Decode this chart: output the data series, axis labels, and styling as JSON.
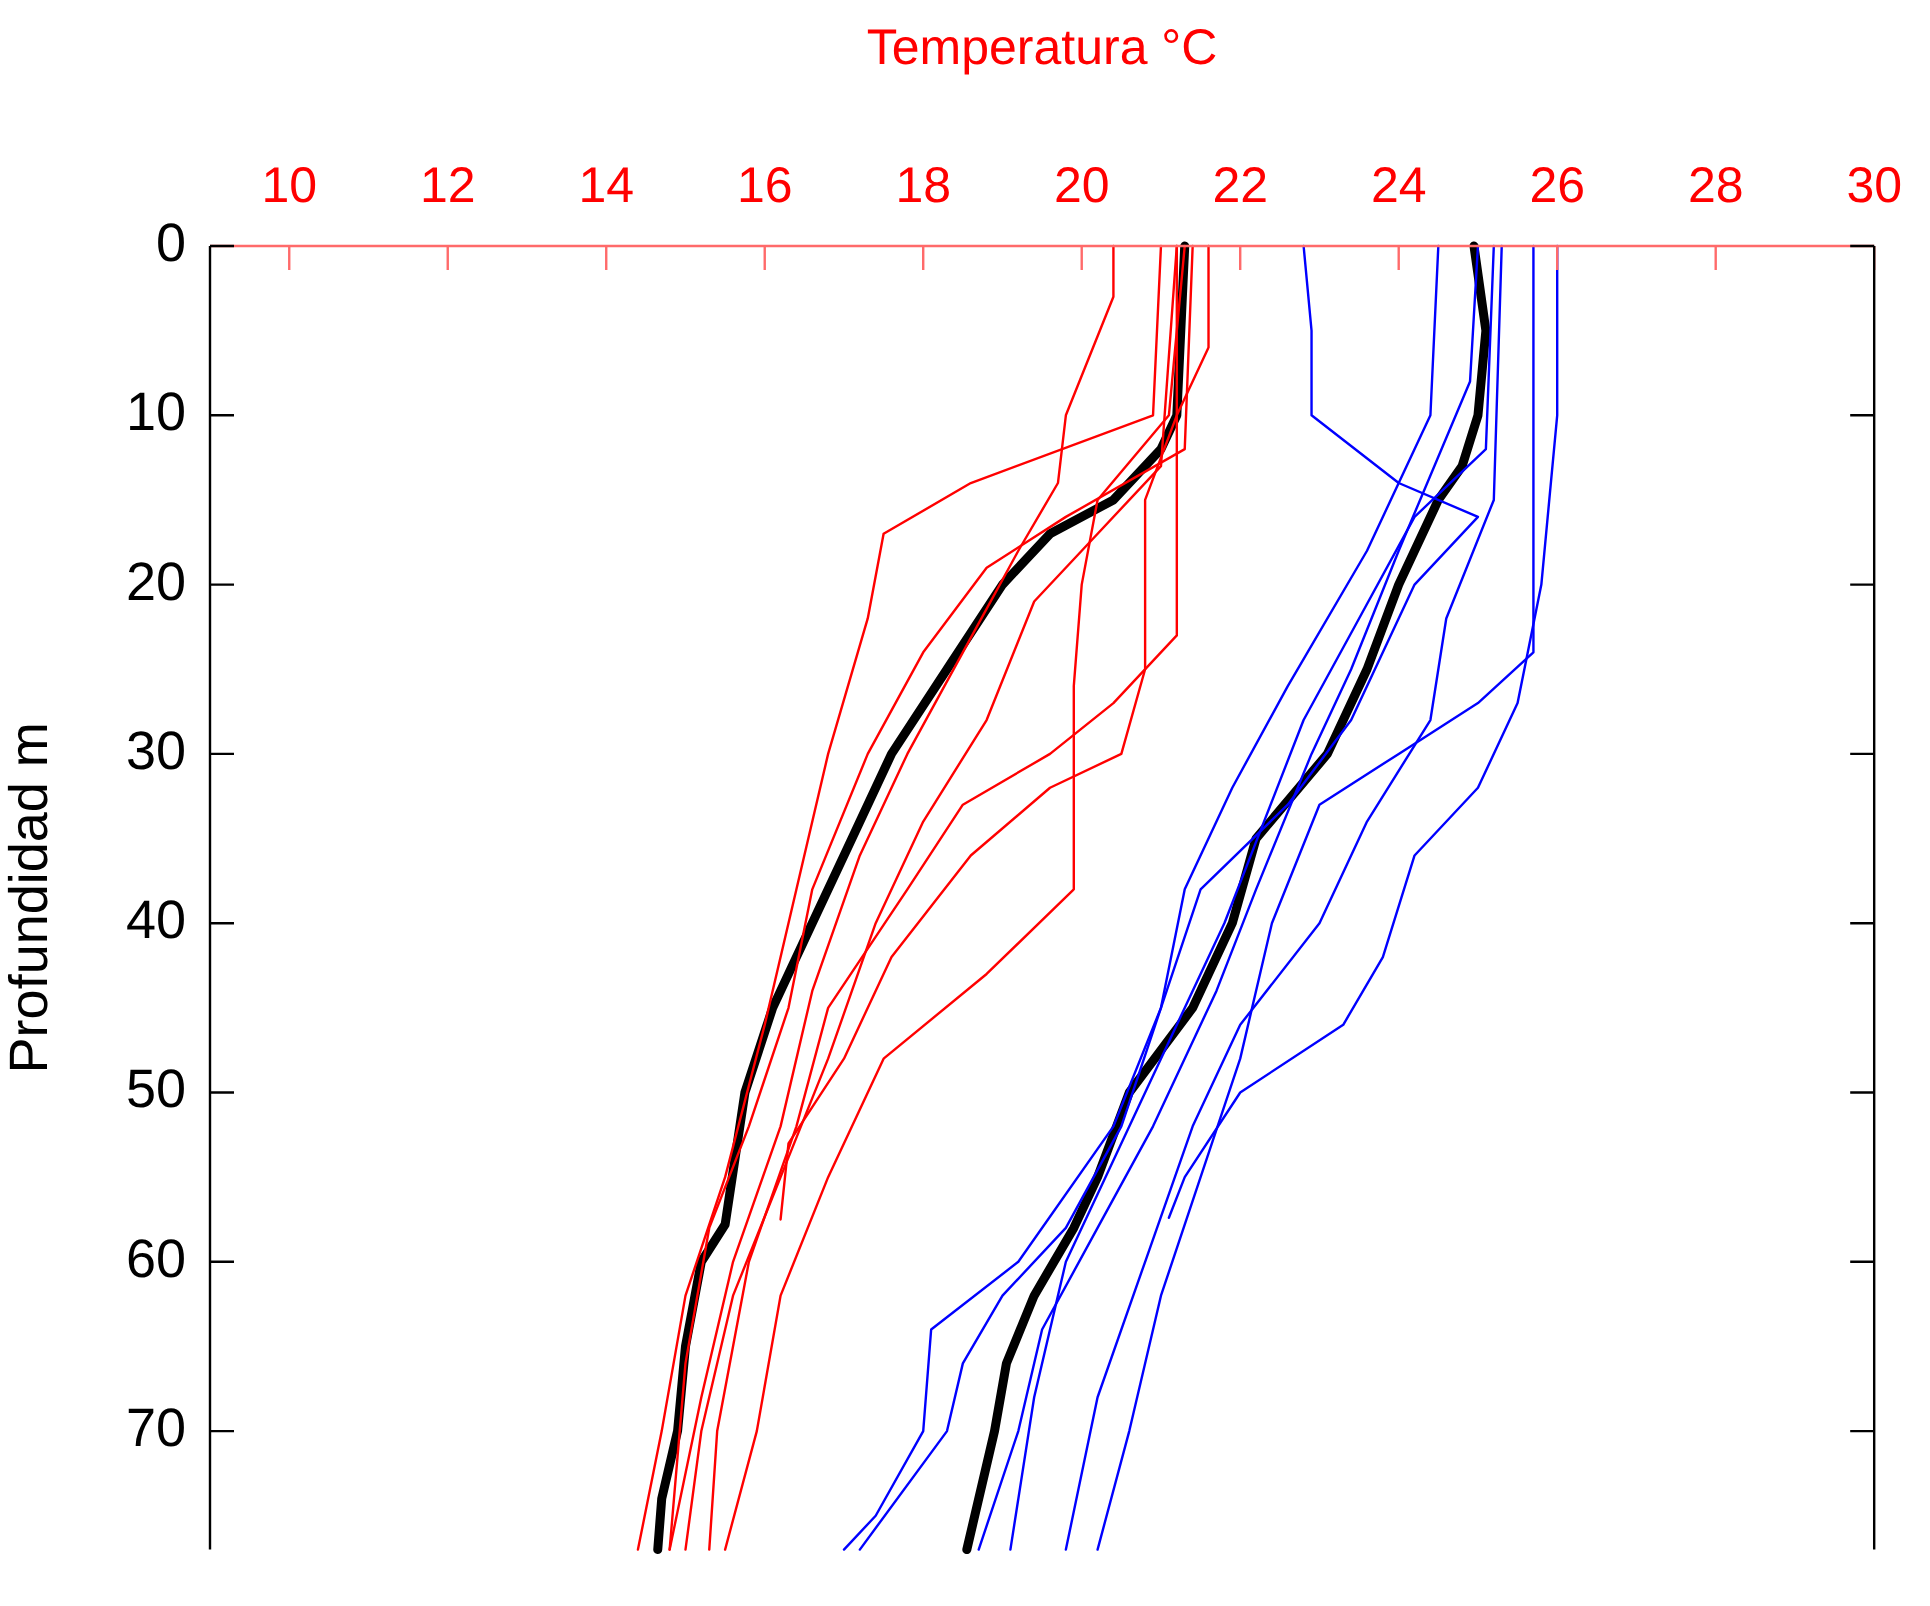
{
  "chart_data": {
    "type": "line",
    "xlabel": "Temperatura °C",
    "ylabel": "Profundidad m",
    "xlim": [
      9,
      30
    ],
    "xticks": [
      10,
      12,
      14,
      16,
      18,
      20,
      22,
      24,
      26,
      28,
      30
    ],
    "ylim": [
      77,
      0
    ],
    "yticks": [
      0,
      10,
      20,
      30,
      40,
      50,
      60,
      70
    ],
    "grid": false,
    "legend": false,
    "marker": "none",
    "line_style": "solid",
    "series": [
      {
        "color": "#ff0000",
        "x": [
          20.4,
          20.4,
          19.8,
          19.7,
          19.2,
          18.5,
          17.8,
          17.2,
          16.6,
          16.2,
          15.6,
          15.2,
          14.8
        ],
        "values": [
          0,
          3,
          10,
          14,
          18,
          24,
          30,
          36,
          44,
          52,
          60,
          68,
          77
        ]
      },
      {
        "color": "#ff0000",
        "x": [
          21.2,
          21.2,
          20.4,
          19.6,
          18.5,
          17.8,
          16.8,
          16.4,
          15.8,
          15.4,
          15.3
        ],
        "values": [
          0,
          23,
          27,
          30,
          33,
          38,
          45,
          52,
          60,
          70,
          77
        ]
      },
      {
        "color": "#ff0000",
        "x": [
          21.6,
          21.6,
          21.2,
          20.8,
          20.8,
          20.5,
          19.6,
          18.6,
          17.6,
          17.0,
          16.3,
          16.2
        ],
        "values": [
          0,
          6,
          10,
          15,
          25,
          30,
          32,
          36,
          42,
          48,
          53,
          57.5
        ]
      },
      {
        "color": "#ff0000",
        "x": [
          21.0,
          20.9,
          18.6,
          17.5,
          17.3,
          16.8,
          16.4,
          16.0,
          15.5,
          15.0,
          14.7,
          14.4
        ],
        "values": [
          0,
          10,
          14,
          17,
          22,
          30,
          38,
          46,
          55,
          62,
          70,
          77
        ]
      },
      {
        "color": "#ff0000",
        "x": [
          21.3,
          21.1,
          20.2,
          20.0,
          19.9,
          19.9,
          18.8,
          17.5,
          16.8,
          16.2,
          15.9,
          15.5
        ],
        "values": [
          0,
          10,
          15,
          20,
          26,
          38,
          43,
          48,
          55,
          62,
          70,
          77
        ]
      },
      {
        "color": "#ff0000",
        "x": [
          21.4,
          21.3,
          19.8,
          18.8,
          18.0,
          17.3,
          16.6,
          16.3,
          15.8,
          15.3,
          15.0,
          14.8
        ],
        "values": [
          0,
          12,
          16,
          19,
          24,
          30,
          38,
          45,
          52,
          58,
          66,
          77
        ]
      },
      {
        "color": "#ff0000",
        "x": [
          21.2,
          21.0,
          20.0,
          19.4,
          18.8,
          18.0,
          17.4,
          16.8,
          16.2,
          15.6,
          15.2,
          15.0
        ],
        "values": [
          0,
          13,
          18,
          21,
          28,
          34,
          40,
          48,
          55,
          62,
          70,
          77
        ]
      },
      {
        "color": "#0000ff",
        "x": [
          22.8,
          22.9,
          22.9,
          24.0,
          25.0,
          24.2,
          23.4,
          22.6,
          21.5,
          21.0,
          20.5,
          19.8,
          19.0,
          18.5,
          18.3,
          17.2
        ],
        "values": [
          0,
          5,
          10,
          14,
          16,
          20,
          28,
          33,
          38,
          45,
          52,
          58,
          62,
          66,
          70,
          77
        ]
      },
      {
        "color": "#0000ff",
        "x": [
          26.0,
          26.0,
          25.8,
          25.5,
          25.0,
          24.2,
          23.8,
          23.3,
          22.0,
          21.3,
          21.1
        ],
        "values": [
          0,
          10,
          20,
          27,
          32,
          36,
          42,
          46,
          50,
          55,
          57.4
        ]
      },
      {
        "color": "#0000ff",
        "x": [
          25.7,
          25.7,
          25.0,
          24.0,
          23.0,
          22.4,
          22.0,
          21.5,
          21.0,
          20.6,
          20.2
        ],
        "values": [
          0,
          24,
          27,
          30,
          33,
          40,
          48,
          55,
          62,
          70,
          77
        ]
      },
      {
        "color": "#0000ff",
        "x": [
          25.2,
          25.1,
          24.2,
          23.5,
          22.8,
          22.3,
          21.8,
          21.0,
          20.3,
          19.8,
          19.4,
          19.1
        ],
        "values": [
          0,
          12,
          16,
          22,
          28,
          34,
          40,
          48,
          55,
          60,
          68,
          77
        ]
      },
      {
        "color": "#0000ff",
        "x": [
          24.5,
          24.4,
          23.6,
          22.6,
          21.9,
          21.3,
          21.0,
          20.4,
          19.2,
          18.1,
          18.0,
          17.4,
          17.0
        ],
        "values": [
          0,
          10,
          18,
          26,
          32,
          38,
          45,
          52,
          60,
          64,
          70,
          75,
          77
        ]
      },
      {
        "color": "#0000ff",
        "x": [
          25.3,
          25.2,
          24.6,
          24.4,
          23.6,
          23.0,
          22.0,
          21.4,
          20.8,
          20.2,
          19.8
        ],
        "values": [
          0,
          15,
          22,
          28,
          34,
          40,
          46,
          52,
          60,
          68,
          77
        ]
      },
      {
        "color": "#0000ff",
        "x": [
          25.0,
          24.9,
          24.0,
          23.4,
          22.9,
          22.2,
          21.7,
          20.9,
          20.2,
          19.5,
          19.2,
          18.7
        ],
        "values": [
          0,
          8,
          18,
          25,
          30,
          38,
          44,
          52,
          58,
          64,
          70,
          77
        ]
      },
      {
        "color": "#000000",
        "x": [
          21.3,
          21.2,
          21.0,
          20.4,
          19.6,
          19.0,
          18.3,
          17.6,
          17.1,
          16.6,
          16.1,
          15.75,
          15.5,
          15.2,
          15.0,
          14.9,
          14.7,
          14.65
        ],
        "values": [
          0,
          10,
          12,
          15,
          17,
          20,
          25,
          30,
          35,
          40,
          45,
          50,
          57.8,
          60,
          65,
          70,
          74,
          77
        ]
      },
      {
        "color": "#000000",
        "x": [
          24.95,
          25.1,
          25.0,
          24.8,
          24.5,
          24.0,
          23.6,
          23.1,
          22.2,
          21.9,
          21.4,
          20.6,
          20.2,
          19.9,
          19.4,
          19.05,
          18.9,
          18.55
        ],
        "values": [
          0,
          5,
          10,
          13,
          15,
          20,
          25,
          30,
          35,
          40,
          45,
          50,
          55,
          58,
          62,
          66,
          70,
          77
        ]
      }
    ]
  }
}
